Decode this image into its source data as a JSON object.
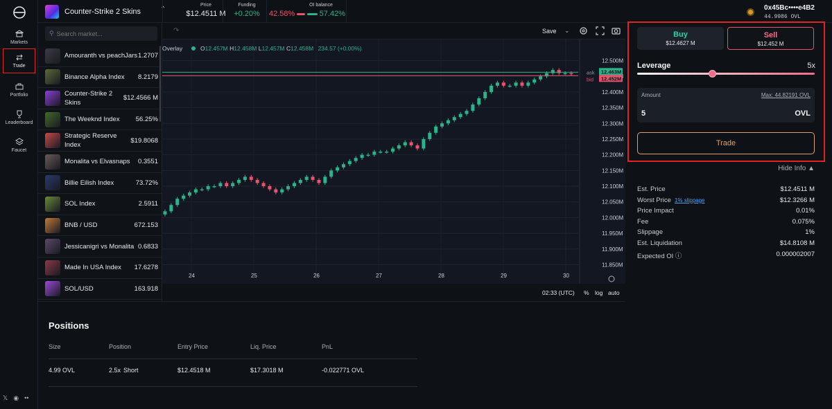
{
  "nav": {
    "items": [
      {
        "label": "Markets",
        "icon": "bank-icon"
      },
      {
        "label": "Trade",
        "icon": "arrows-swap-icon"
      },
      {
        "label": "Portfolio",
        "icon": "briefcase-icon"
      },
      {
        "label": "Leaderboard",
        "icon": "trophy-icon"
      },
      {
        "label": "Faucet",
        "icon": "layers-icon"
      }
    ],
    "social": [
      "𝕏",
      "◉",
      "••"
    ]
  },
  "header": {
    "market_name": "Counter-Strike 2 Skins",
    "price_label": "Price",
    "price_value": "$12.4511 M",
    "funding_label": "Funding",
    "funding_value": "+0.20%",
    "oi_label": "OI balance",
    "oi_left": "42.58%",
    "oi_right": "57.42%",
    "wallet_address": "0x45Bc••••e4B2",
    "wallet_balance": "44.9986 OVL"
  },
  "market_list": {
    "search_placeholder": "Search market...",
    "rows": [
      {
        "name": "Amouranth vs peachJars",
        "price": "1.2707",
        "color": "#3d3a45"
      },
      {
        "name": "Binance Alpha Index",
        "price": "8.2179",
        "color": "#5a6a3a"
      },
      {
        "name": "Counter-Strike 2 Skins",
        "price": "$12.4566 M",
        "color": "#8a3fd8"
      },
      {
        "name": "The Weeknd Index",
        "price": "56.25%",
        "color": "#3f6a2a"
      },
      {
        "name": "Strategic Reserve Index",
        "price": "$19.8068",
        "color": "#c44a4a"
      },
      {
        "name": "Monalita vs Elvasnaps",
        "price": "0.3551",
        "color": "#6a5a5a"
      },
      {
        "name": "Billie Eilish Index",
        "price": "73.72%",
        "color": "#2a3a6a"
      },
      {
        "name": "SOL Index",
        "price": "2.5911",
        "color": "#6a8a3a"
      },
      {
        "name": "BNB / USD",
        "price": "672.153",
        "color": "#c07a3a"
      },
      {
        "name": "Jessicanigri vs Monalita",
        "price": "0.6833",
        "color": "#5a4a6a"
      },
      {
        "name": "Made In USA Index",
        "price": "17.6278",
        "color": "#8a3a4a"
      },
      {
        "name": "SOL/USD",
        "price": "163.918",
        "color": "#9a4ad8"
      }
    ]
  },
  "chart": {
    "save_label": "Save",
    "overlay_label": "Overlay",
    "ohlc": {
      "o": "12.457M",
      "h": "12.458M",
      "l": "12.457M",
      "c": "12.458M",
      "change": "234.57 (+0.00%)"
    },
    "ask_label": "ask",
    "bid_label": "bid",
    "ask_value": "12.463M",
    "bid_value": "12.452M",
    "time_label": "02:33 (UTC)",
    "pct_label": "%",
    "log_label": "log",
    "auto_label": "auto"
  },
  "chart_data": {
    "type": "candlestick",
    "y_ticks": [
      "12.500M",
      "12.450M",
      "12.400M",
      "12.350M",
      "12.300M",
      "12.250M",
      "12.200M",
      "12.150M",
      "12.100M",
      "12.050M",
      "12.000M",
      "11.950M",
      "11.900M",
      "11.850M"
    ],
    "x_ticks": [
      "24",
      "25",
      "26",
      "27",
      "28",
      "29",
      "30"
    ],
    "ylim": [
      11.84,
      12.51
    ],
    "ask": 12.463,
    "bid": 12.452,
    "close_series": [
      12.02,
      12.04,
      12.06,
      12.07,
      12.08,
      12.09,
      12.09,
      12.1,
      12.1,
      12.11,
      12.1,
      12.11,
      12.12,
      12.13,
      12.12,
      12.11,
      12.1,
      12.09,
      12.08,
      12.09,
      12.1,
      12.11,
      12.12,
      12.13,
      12.12,
      12.11,
      12.13,
      12.15,
      12.16,
      12.17,
      12.18,
      12.19,
      12.2,
      12.2,
      12.21,
      12.21,
      12.21,
      12.22,
      12.23,
      12.24,
      12.23,
      12.22,
      12.25,
      12.27,
      12.29,
      12.3,
      12.31,
      12.32,
      12.33,
      12.34,
      12.36,
      12.38,
      12.4,
      12.42,
      12.43,
      12.42,
      12.42,
      12.43,
      12.42,
      12.43,
      12.44,
      12.45,
      12.46,
      12.47,
      12.46,
      12.46,
      12.458
    ]
  },
  "positions": {
    "title": "Positions",
    "headers": [
      "Size",
      "Position",
      "Entry Price",
      "Liq. Price",
      "PnL"
    ],
    "row": {
      "size": "4.99 OVL",
      "leverage": "2.5x",
      "side": "Short",
      "entry": "$12.4518 M",
      "liq": "$17.3018 M",
      "pnl": "-0.022771 OVL"
    }
  },
  "trade": {
    "buy_label": "Buy",
    "buy_price": "$12.4627 M",
    "sell_label": "Sell",
    "sell_price": "$12.452 M",
    "leverage_label": "Leverage",
    "leverage_value": "5x",
    "leverage_fraction": 0.42,
    "amount_label": "Amount",
    "max_label": "Max: 44.82191 OVL",
    "amount_value": "5",
    "amount_currency": "OVL",
    "trade_button": "Trade",
    "hide_info": "Hide Info ▲"
  },
  "info": [
    {
      "k": "Est. Price",
      "v": "$12.4511 M"
    },
    {
      "k": "Worst Price",
      "link": "1% slippage",
      "v": "$12.3266 M"
    },
    {
      "k": "Price Impact",
      "v": "0.01%"
    },
    {
      "k": "Fee",
      "v": "0.075%"
    },
    {
      "k": "Slippage",
      "v": "1%"
    },
    {
      "k": "Est. Liquidation",
      "v": "$14.8108 M"
    },
    {
      "k": "Expected OI ⓘ",
      "v": "0.000002007"
    }
  ],
  "colors": {
    "up": "#2bb38a",
    "down": "#e8546d",
    "accent": "#e02424"
  }
}
